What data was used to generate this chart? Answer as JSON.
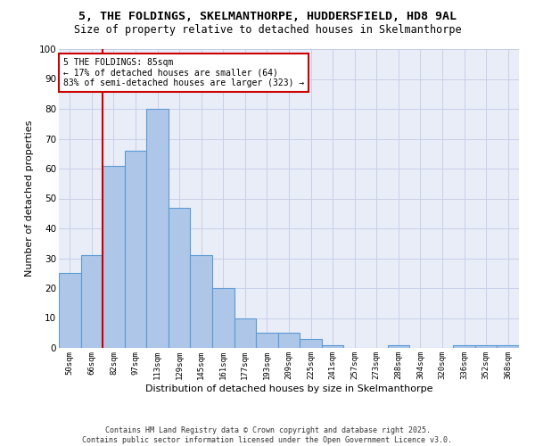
{
  "title": "5, THE FOLDINGS, SKELMANTHORPE, HUDDERSFIELD, HD8 9AL",
  "subtitle": "Size of property relative to detached houses in Skelmanthorpe",
  "xlabel": "Distribution of detached houses by size in Skelmanthorpe",
  "ylabel": "Number of detached properties",
  "categories": [
    "50sqm",
    "66sqm",
    "82sqm",
    "97sqm",
    "113sqm",
    "129sqm",
    "145sqm",
    "161sqm",
    "177sqm",
    "193sqm",
    "209sqm",
    "225sqm",
    "241sqm",
    "257sqm",
    "273sqm",
    "288sqm",
    "304sqm",
    "320sqm",
    "336sqm",
    "352sqm",
    "368sqm"
  ],
  "values": [
    25,
    31,
    61,
    66,
    80,
    47,
    31,
    20,
    10,
    5,
    5,
    3,
    1,
    0,
    0,
    1,
    0,
    0,
    1,
    1,
    1
  ],
  "bar_color": "#aec6e8",
  "bar_edge_color": "#5b9bd5",
  "bar_linewidth": 0.8,
  "vline_color": "#cc0000",
  "vline_x": 1.5,
  "annotation_text": "5 THE FOLDINGS: 85sqm\n← 17% of detached houses are smaller (64)\n83% of semi-detached houses are larger (323) →",
  "annotation_box_color": "#ffffff",
  "annotation_box_edge": "#cc0000",
  "ylim": [
    0,
    100
  ],
  "yticks": [
    0,
    10,
    20,
    30,
    40,
    50,
    60,
    70,
    80,
    90,
    100
  ],
  "grid_color": "#c8d0e8",
  "bg_color": "#e8edf8",
  "footer": "Contains HM Land Registry data © Crown copyright and database right 2025.\nContains public sector information licensed under the Open Government Licence v3.0.",
  "title_fontsize": 9.5,
  "subtitle_fontsize": 8.5,
  "xlabel_fontsize": 8,
  "ylabel_fontsize": 8,
  "footer_fontsize": 6
}
